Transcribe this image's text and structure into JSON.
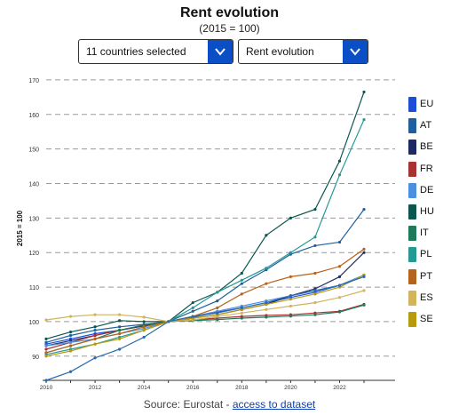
{
  "header": {
    "title": "Rent evolution",
    "subtitle": "(2015 = 100)"
  },
  "controls": {
    "countries_label": "11 countries selected",
    "indicator_label": "Rent evolution"
  },
  "icons": {
    "dropdown": "chevron-down-icon"
  },
  "colors": {
    "accent": "#0b4fc7",
    "link": "#0b3fb5",
    "grid": "#9a9a9a"
  },
  "source": {
    "prefix": "Source: Eurostat - ",
    "link_text": "access to dataset"
  },
  "chart_data": {
    "type": "line",
    "title": "Rent evolution",
    "subtitle": "(2015 = 100)",
    "ylabel": "2015 = 100",
    "xlabel": "",
    "x": [
      2010,
      2011,
      2012,
      2013,
      2014,
      2015,
      2016,
      2017,
      2018,
      2019,
      2020,
      2021,
      2022,
      2023
    ],
    "xticks": [
      2010,
      2012,
      2014,
      2016,
      2018,
      2020,
      2022
    ],
    "yticks": [
      90,
      100,
      110,
      120,
      130,
      140,
      150,
      160,
      170
    ],
    "ylim": [
      83,
      171
    ],
    "grid": "horizontal dashed",
    "legend_position": "right",
    "series": [
      {
        "name": "EU",
        "color": "#1c4fd6",
        "values": [
          93.5,
          95,
          96.5,
          97.5,
          98.8,
          100,
          101.3,
          102.7,
          104,
          105.5,
          107,
          108.5,
          110.5,
          113.5
        ]
      },
      {
        "name": "AT",
        "color": "#1f5f9e",
        "values": [
          94,
          96,
          97.5,
          98.5,
          99.2,
          100,
          103,
          106,
          111,
          115,
          119.5,
          122,
          123,
          132.5
        ]
      },
      {
        "name": "BE",
        "color": "#1b2a63",
        "values": [
          93,
          94.5,
          96,
          97.5,
          98.8,
          100,
          101,
          102,
          103.5,
          105,
          107.5,
          109.5,
          113,
          120
        ]
      },
      {
        "name": "FR",
        "color": "#a83232",
        "values": [
          92,
          94,
          96,
          97.5,
          99,
          100,
          100.5,
          101,
          101.5,
          101.8,
          102,
          102.5,
          103,
          105
        ]
      },
      {
        "name": "DE",
        "color": "#4a8fe0",
        "values": [
          93,
          94,
          95,
          96.5,
          98,
          100,
          101.5,
          103,
          104.5,
          106,
          107.5,
          109,
          110.5,
          113.5
        ]
      },
      {
        "name": "HU",
        "color": "#0c5650",
        "values": [
          95,
          97,
          98.5,
          100.3,
          100,
          100,
          105.5,
          108.5,
          114,
          125,
          130,
          132.5,
          146.5,
          166.5
        ]
      },
      {
        "name": "IT",
        "color": "#1e7a5a",
        "values": [
          91,
          93,
          95,
          97.5,
          99,
          100,
          100.3,
          100.6,
          101,
          101.3,
          101.6,
          102,
          102.8,
          104.8
        ]
      },
      {
        "name": "PL",
        "color": "#259a95",
        "values": [
          90.5,
          92,
          93.5,
          95.5,
          97.5,
          100,
          104,
          108.5,
          112,
          115.5,
          120,
          124.5,
          142.5,
          158.5
        ]
      },
      {
        "name": "PT",
        "color": "#b5641e",
        "values": [
          91,
          93,
          95,
          96.5,
          98.5,
          100,
          101.5,
          104,
          108,
          111,
          113,
          114,
          116,
          121
        ]
      },
      {
        "name": "ES",
        "color": "#d2b45a",
        "values": [
          100.5,
          101.5,
          102,
          102,
          101.3,
          100,
          100.5,
          101.5,
          102.5,
          103.5,
          104.5,
          105.5,
          107,
          109
        ]
      },
      {
        "name": "SE",
        "color": "#b89a10",
        "values": [
          90,
          91.5,
          93.5,
          95,
          97.5,
          100,
          101,
          102,
          103.5,
          105,
          106.5,
          108,
          110,
          113.5
        ]
      },
      {
        "name": "",
        "color": "#2a6bb0",
        "values": [
          83,
          85.5,
          89.5,
          92,
          95.5,
          100,
          101.5,
          102.5,
          104,
          105.5,
          107.5,
          109,
          110.5,
          113
        ]
      }
    ]
  }
}
